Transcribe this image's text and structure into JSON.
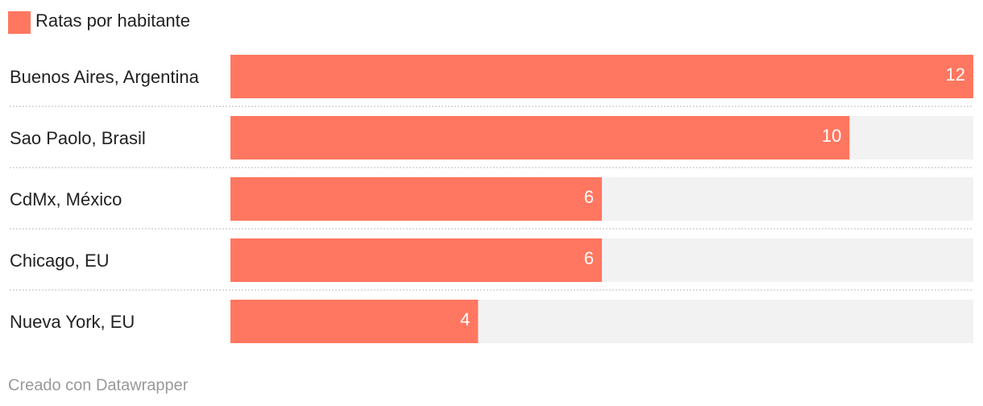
{
  "chart_data": {
    "type": "bar",
    "orientation": "horizontal",
    "series": [
      {
        "name": "Ratas por habitante",
        "color": "#ff7760",
        "values": [
          12,
          10,
          6,
          6,
          4
        ]
      }
    ],
    "categories": [
      "Buenos Aires, Argentina",
      "Sao Paolo, Brasil",
      "CdMx, México",
      "Chicago, EU",
      "Nueva York, EU"
    ],
    "xlim": [
      0,
      12
    ],
    "credit": "Creado con Datawrapper"
  }
}
